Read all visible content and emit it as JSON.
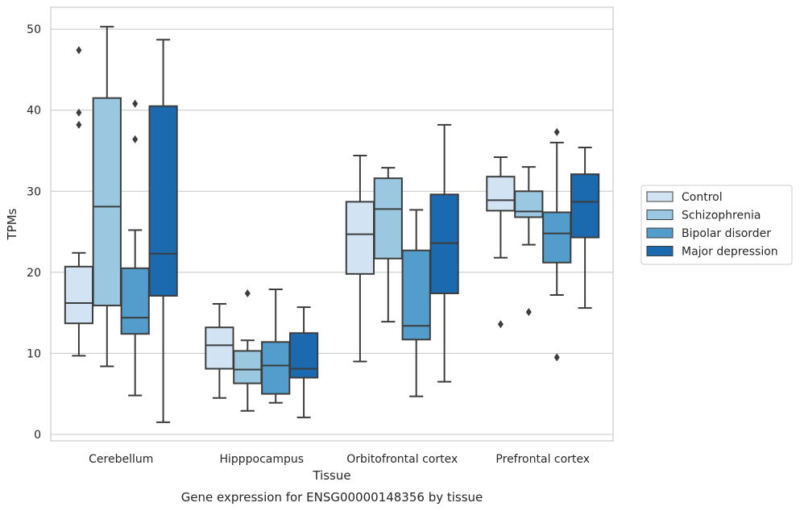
{
  "chart_data": {
    "type": "box",
    "title": "",
    "caption": "Gene expression for ENSG00000148356 by tissue",
    "xlabel": "Tissue",
    "ylabel": "TPMs",
    "ylim": [
      -0.8,
      52.7
    ],
    "yticks": [
      0,
      10,
      20,
      30,
      40,
      50
    ],
    "grid": "horizontal",
    "legend_position": "right-outside",
    "categories": [
      "Cerebellum",
      "Hipppocampus",
      "Orbitofrontal cortex",
      "Prefrontal cortex"
    ],
    "series": [
      {
        "name": "Control",
        "color": "#d2e3f3",
        "boxes": [
          {
            "whisker_low": 9.7,
            "q1": 13.7,
            "median": 16.2,
            "q3": 20.7,
            "whisker_high": 22.4,
            "outliers": [
              38.2,
              39.7,
              47.4
            ]
          },
          {
            "whisker_low": 4.5,
            "q1": 8.1,
            "median": 11.0,
            "q3": 13.2,
            "whisker_high": 16.1,
            "outliers": []
          },
          {
            "whisker_low": 9.0,
            "q1": 19.8,
            "median": 24.7,
            "q3": 28.7,
            "whisker_high": 34.4,
            "outliers": []
          },
          {
            "whisker_low": 21.8,
            "q1": 27.6,
            "median": 28.9,
            "q3": 31.8,
            "whisker_high": 34.2,
            "outliers": [
              13.6
            ]
          }
        ]
      },
      {
        "name": "Schizophrenia",
        "color": "#9ac8e0",
        "boxes": [
          {
            "whisker_low": 8.4,
            "q1": 15.9,
            "median": 28.1,
            "q3": 41.5,
            "whisker_high": 50.3,
            "outliers": []
          },
          {
            "whisker_low": 2.9,
            "q1": 6.3,
            "median": 8.0,
            "q3": 10.3,
            "whisker_high": 11.6,
            "outliers": [
              17.4
            ]
          },
          {
            "whisker_low": 13.9,
            "q1": 21.7,
            "median": 27.8,
            "q3": 31.6,
            "whisker_high": 32.9,
            "outliers": []
          },
          {
            "whisker_low": 23.4,
            "q1": 26.8,
            "median": 27.5,
            "q3": 30.0,
            "whisker_high": 33.0,
            "outliers": [
              15.1
            ]
          }
        ]
      },
      {
        "name": "Bipolar disorder",
        "color": "#529dcc",
        "boxes": [
          {
            "whisker_low": 4.8,
            "q1": 12.4,
            "median": 14.4,
            "q3": 20.5,
            "whisker_high": 25.2,
            "outliers": [
              36.4,
              40.8
            ]
          },
          {
            "whisker_low": 3.9,
            "q1": 5.0,
            "median": 8.5,
            "q3": 11.4,
            "whisker_high": 17.9,
            "outliers": []
          },
          {
            "whisker_low": 4.7,
            "q1": 11.7,
            "median": 13.4,
            "q3": 22.7,
            "whisker_high": 27.7,
            "outliers": []
          },
          {
            "whisker_low": 17.2,
            "q1": 21.2,
            "median": 24.8,
            "q3": 27.4,
            "whisker_high": 36.0,
            "outliers": [
              9.5,
              37.3
            ]
          }
        ]
      },
      {
        "name": "Major depression",
        "color": "#1b69af",
        "boxes": [
          {
            "whisker_low": 1.5,
            "q1": 17.1,
            "median": 22.3,
            "q3": 40.5,
            "whisker_high": 48.7,
            "outliers": []
          },
          {
            "whisker_low": 2.1,
            "q1": 7.0,
            "median": 8.1,
            "q3": 12.5,
            "whisker_high": 15.7,
            "outliers": []
          },
          {
            "whisker_low": 6.5,
            "q1": 17.4,
            "median": 23.6,
            "q3": 29.6,
            "whisker_high": 38.2,
            "outliers": []
          },
          {
            "whisker_low": 15.6,
            "q1": 24.3,
            "median": 28.7,
            "q3": 32.1,
            "whisker_high": 35.4,
            "outliers": []
          }
        ]
      }
    ]
  }
}
